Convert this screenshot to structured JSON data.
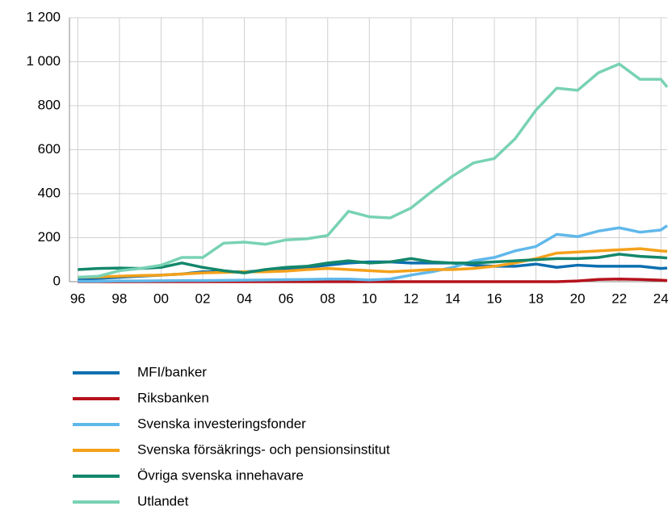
{
  "chart_data": {
    "type": "line",
    "x": [
      1996,
      1997,
      1998,
      1999,
      2000,
      2001,
      2002,
      2003,
      2004,
      2005,
      2006,
      2007,
      2008,
      2009,
      2010,
      2011,
      2012,
      2013,
      2014,
      2015,
      2016,
      2017,
      2018,
      2019,
      2020,
      2021,
      2022,
      2023,
      2024,
      2024.3
    ],
    "xlim": [
      1995.6,
      2024.3
    ],
    "xticks": [
      {
        "value": 1996,
        "label": "96"
      },
      {
        "value": 1998,
        "label": "98"
      },
      {
        "value": 2000,
        "label": "00"
      },
      {
        "value": 2002,
        "label": "02"
      },
      {
        "value": 2004,
        "label": "04"
      },
      {
        "value": 2006,
        "label": "06"
      },
      {
        "value": 2008,
        "label": "08"
      },
      {
        "value": 2010,
        "label": "10"
      },
      {
        "value": 2012,
        "label": "12"
      },
      {
        "value": 2014,
        "label": "14"
      },
      {
        "value": 2016,
        "label": "16"
      },
      {
        "value": 2018,
        "label": "18"
      },
      {
        "value": 2020,
        "label": "20"
      },
      {
        "value": 2022,
        "label": "22"
      },
      {
        "value": 2024,
        "label": "24"
      }
    ],
    "ylim": [
      0,
      1200
    ],
    "yticks": [
      0,
      200,
      400,
      600,
      800,
      {
        "value": 1000,
        "label": "1 000"
      },
      {
        "value": 1200,
        "label": "1 200"
      }
    ],
    "grid": true,
    "series": [
      {
        "name": "MFI/banker",
        "color": "#0b6fb0",
        "values": [
          10,
          15,
          20,
          25,
          30,
          35,
          45,
          45,
          45,
          50,
          60,
          65,
          75,
          85,
          90,
          90,
          85,
          85,
          85,
          75,
          70,
          70,
          80,
          65,
          75,
          70,
          70,
          70,
          60,
          62
        ]
      },
      {
        "name": "Riksbanken",
        "color": "#b5121b",
        "values": [
          0,
          0,
          0,
          0,
          0,
          0,
          0,
          0,
          0,
          0,
          0,
          0,
          0,
          0,
          0,
          0,
          0,
          0,
          0,
          0,
          0,
          0,
          0,
          0,
          3,
          10,
          12,
          10,
          7,
          5
        ]
      },
      {
        "name": "Svenska investeringsfonder",
        "color": "#60b8ea",
        "values": [
          2,
          2,
          3,
          3,
          4,
          5,
          5,
          6,
          7,
          8,
          9,
          10,
          12,
          12,
          8,
          12,
          30,
          45,
          65,
          95,
          110,
          140,
          160,
          215,
          205,
          230,
          245,
          225,
          235,
          255
        ]
      },
      {
        "name": "Svenska försäkrings- och pensionsinstitut",
        "color": "#f4a11a",
        "values": [
          20,
          22,
          25,
          28,
          30,
          35,
          40,
          42,
          45,
          45,
          48,
          55,
          60,
          55,
          50,
          45,
          50,
          55,
          55,
          60,
          70,
          85,
          105,
          130,
          135,
          140,
          145,
          150,
          140,
          138
        ]
      },
      {
        "name": "Övriga svenska innehavare",
        "color": "#13876b",
        "values": [
          55,
          60,
          62,
          60,
          65,
          85,
          65,
          50,
          40,
          55,
          65,
          70,
          85,
          95,
          85,
          90,
          105,
          90,
          85,
          85,
          90,
          95,
          100,
          105,
          105,
          110,
          125,
          115,
          110,
          108
        ]
      },
      {
        "name": "Utlandet",
        "color": "#78d2b4",
        "values": [
          20,
          25,
          50,
          60,
          75,
          110,
          110,
          175,
          180,
          170,
          190,
          195,
          210,
          320,
          295,
          290,
          335,
          410,
          480,
          540,
          560,
          650,
          780,
          880,
          870,
          950,
          990,
          920,
          920,
          885
        ]
      }
    ]
  }
}
